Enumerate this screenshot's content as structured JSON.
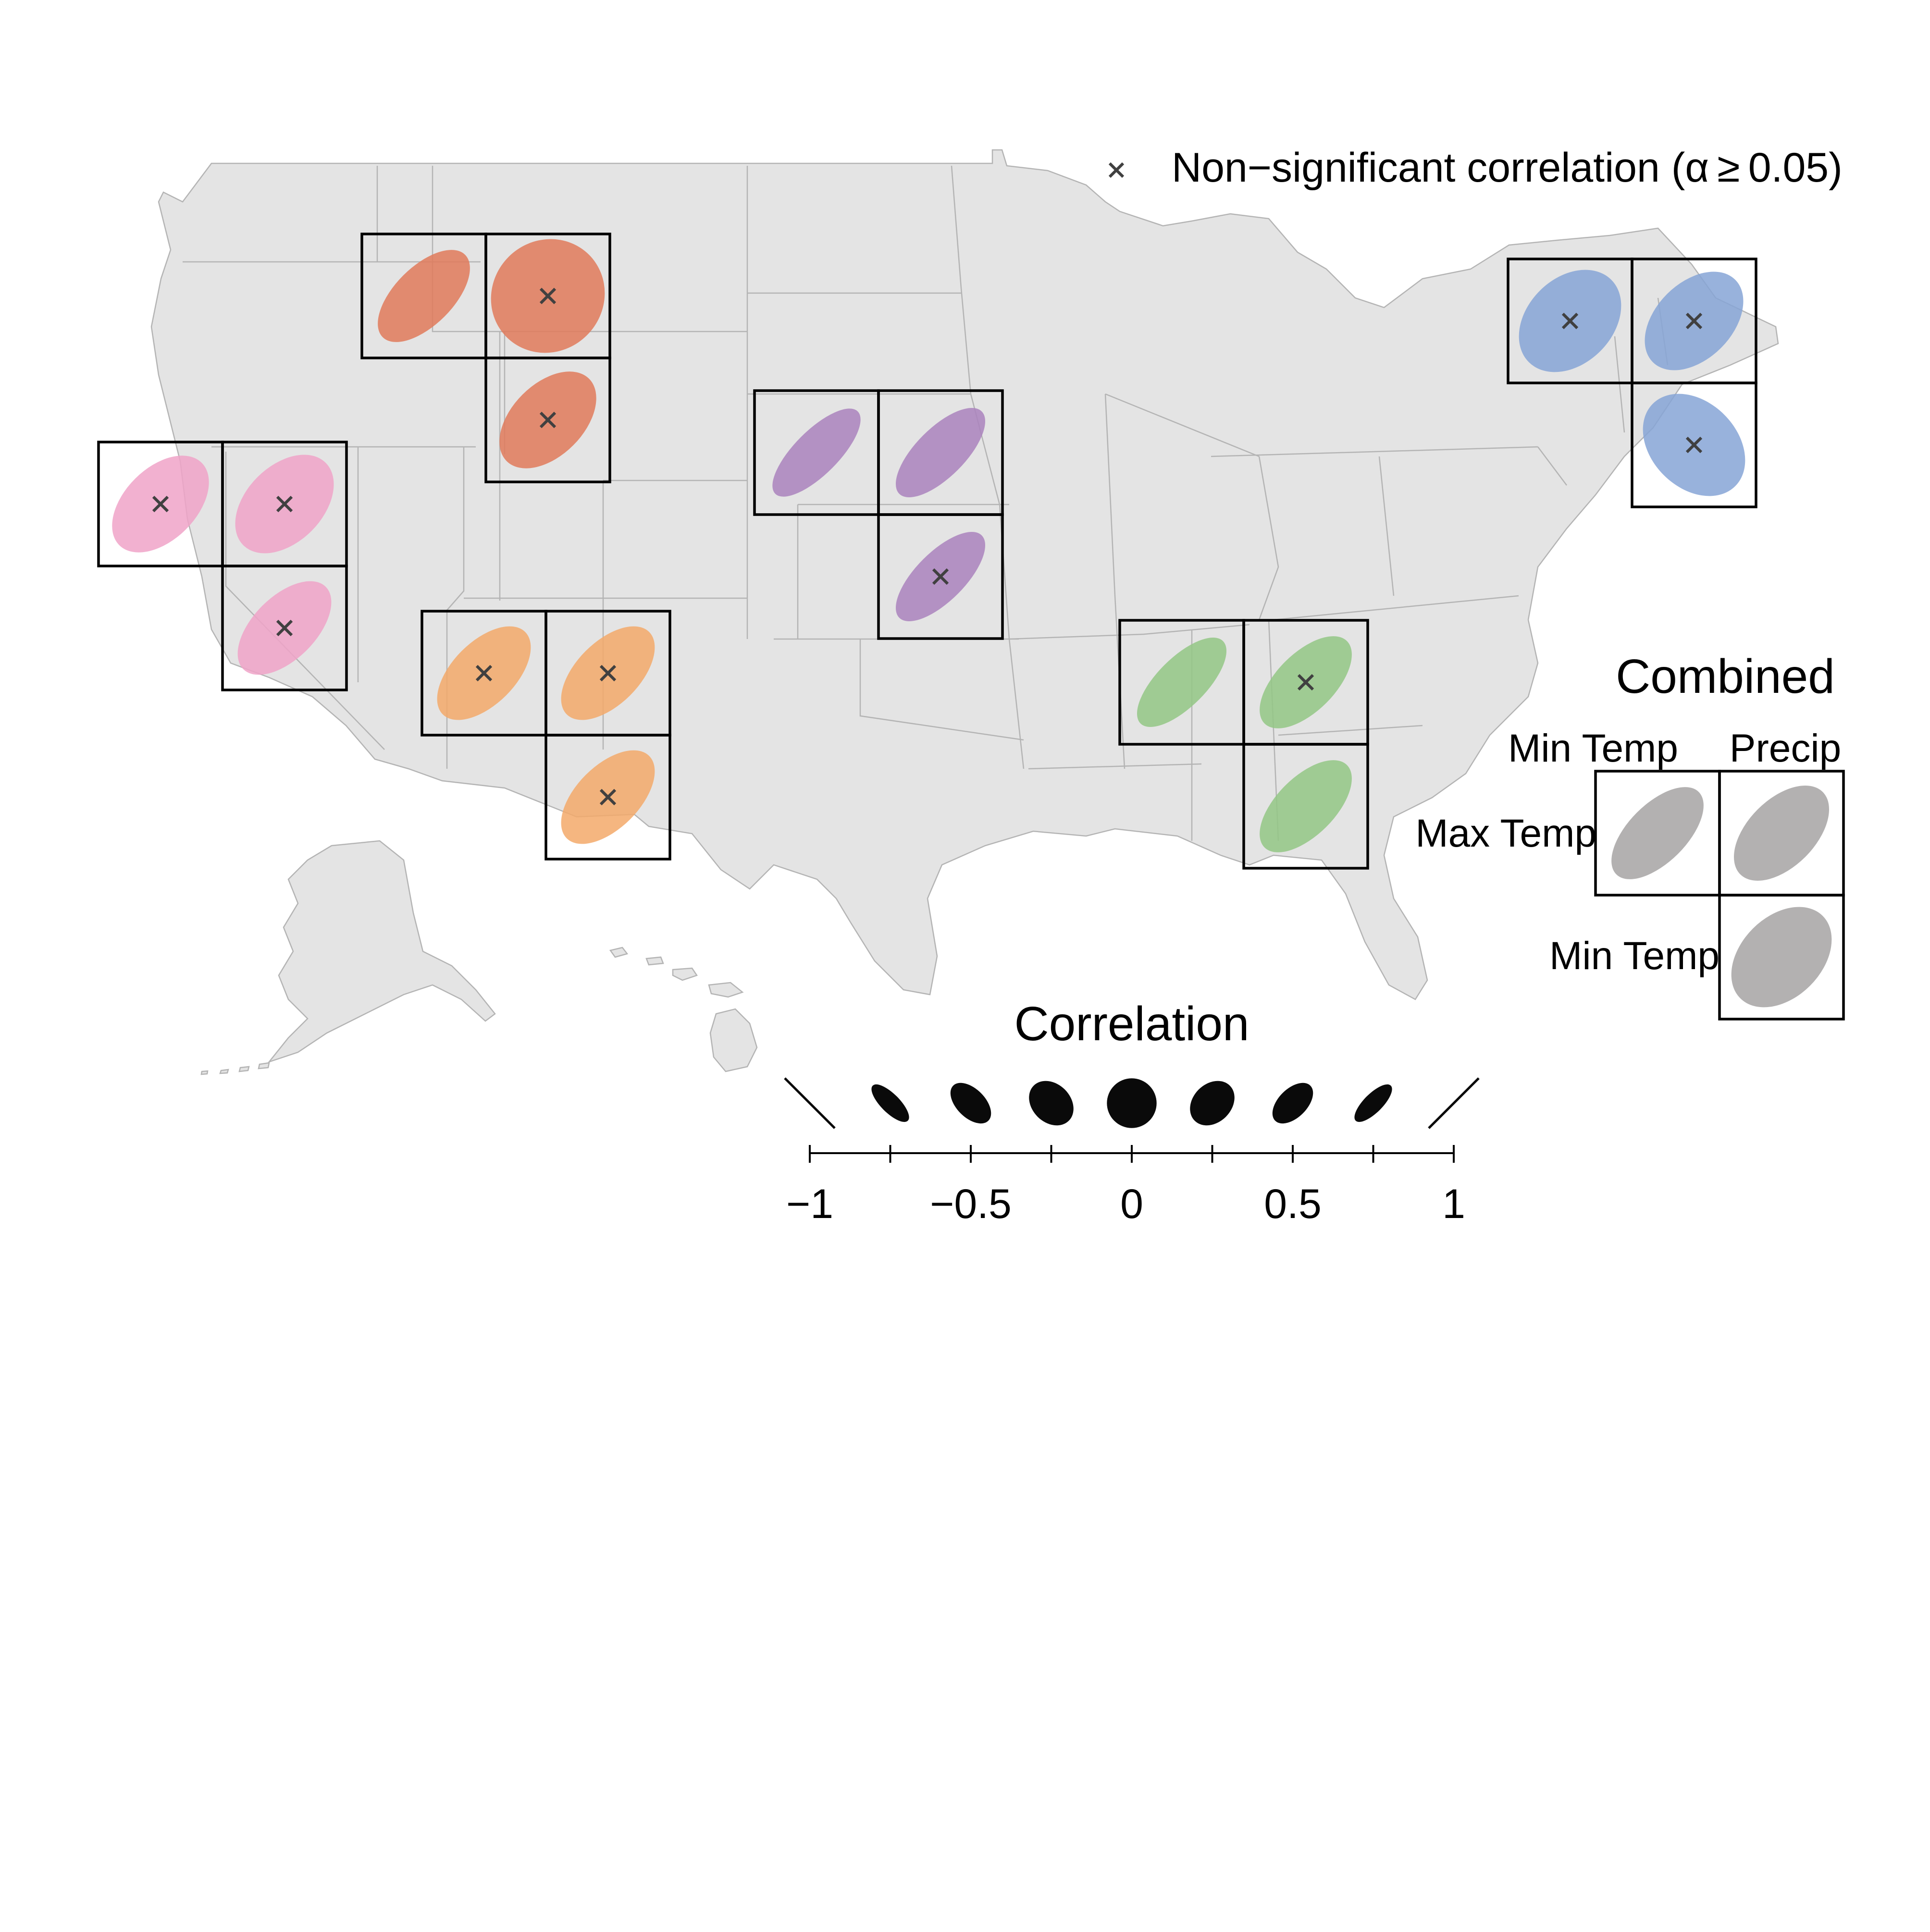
{
  "legend": {
    "nonsig_label": "Non−significant correlation (α ≥ 0.05)"
  },
  "correlation_scale": {
    "title": "Correlation",
    "ticks": [
      -1,
      -0.75,
      -0.5,
      -0.25,
      0,
      0.25,
      0.5,
      0.75,
      1
    ],
    "tick_labels": [
      "−1",
      "−0.5",
      "0",
      "0.5",
      "1"
    ],
    "tick_label_values": [
      -1,
      -0.5,
      0,
      0.5,
      1
    ],
    "glyph_color": "#0a0a0a"
  },
  "combined": {
    "title": "Combined",
    "col_labels": [
      "Min Temp",
      "Precip"
    ],
    "row_labels": [
      "Max Temp",
      "Min Temp"
    ],
    "color": "#b3b1b1",
    "cells": [
      {
        "pair": "MaxTemp-MinTemp",
        "r": 0.6,
        "significant": true
      },
      {
        "pair": "MaxTemp-Precip",
        "r": 0.5,
        "significant": true
      },
      {
        "pair": "MinTemp-Precip",
        "r": 0.35,
        "significant": true
      }
    ]
  },
  "regions": [
    {
      "name": "northwest",
      "color": "#e07a5a",
      "cells": [
        {
          "pair": "MaxTemp-MinTemp",
          "r": 0.6,
          "significant": true
        },
        {
          "pair": "MaxTemp-Precip",
          "r": 0.05,
          "significant": false
        },
        {
          "pair": "MinTemp-Precip",
          "r": 0.45,
          "significant": false
        }
      ]
    },
    {
      "name": "west",
      "color": "#f0a3c8",
      "cells": [
        {
          "pair": "MaxTemp-MinTemp",
          "r": 0.45,
          "significant": false
        },
        {
          "pair": "MaxTemp-Precip",
          "r": 0.4,
          "significant": false
        },
        {
          "pair": "MinTemp-Precip",
          "r": 0.55,
          "significant": false
        }
      ]
    },
    {
      "name": "southwest",
      "color": "#f3a96a",
      "cells": [
        {
          "pair": "MaxTemp-MinTemp",
          "r": 0.55,
          "significant": false
        },
        {
          "pair": "MaxTemp-Precip",
          "r": 0.55,
          "significant": false
        },
        {
          "pair": "MinTemp-Precip",
          "r": 0.55,
          "significant": false
        }
      ]
    },
    {
      "name": "central-plains",
      "color": "#aa82bd",
      "cells": [
        {
          "pair": "MaxTemp-MinTemp",
          "r": 0.75,
          "significant": true
        },
        {
          "pair": "MaxTemp-Precip",
          "r": 0.7,
          "significant": true
        },
        {
          "pair": "MinTemp-Precip",
          "r": 0.7,
          "significant": false
        }
      ]
    },
    {
      "name": "southeast",
      "color": "#93c785",
      "cells": [
        {
          "pair": "MaxTemp-MinTemp",
          "r": 0.7,
          "significant": true
        },
        {
          "pair": "MaxTemp-Precip",
          "r": 0.6,
          "significant": false
        },
        {
          "pair": "MinTemp-Precip",
          "r": 0.6,
          "significant": true
        }
      ]
    },
    {
      "name": "northeast",
      "color": "#86a5d6",
      "cells": [
        {
          "pair": "MaxTemp-MinTemp",
          "r": 0.3,
          "significant": false
        },
        {
          "pair": "MaxTemp-Precip",
          "r": 0.4,
          "significant": false
        },
        {
          "pair": "MinTemp-Precip",
          "r": -0.3,
          "significant": false
        }
      ]
    }
  ],
  "colors": {
    "land": "#e4e4e4",
    "state_border": "#b4b4b4",
    "cell_border": "#000000",
    "nonsig_mark": "#404040"
  }
}
